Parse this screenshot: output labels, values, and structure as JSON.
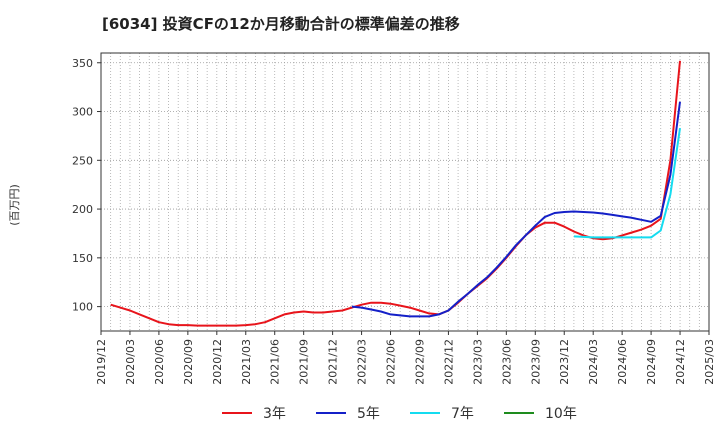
{
  "chart_data": {
    "type": "line",
    "title": "[6034]  投資CFの12か月移動合計の標準偏差の推移",
    "ylabel": "(百万円)",
    "xlabel": "",
    "ylim": [
      75,
      360
    ],
    "xlim": [
      "2019-12",
      "2025-03"
    ],
    "grid": true,
    "legend_position": "bottom",
    "y_ticks": [
      100,
      150,
      200,
      250,
      300,
      350
    ],
    "x_ticks": [
      "2019/12",
      "2020/03",
      "2020/06",
      "2020/09",
      "2020/12",
      "2021/03",
      "2021/06",
      "2021/09",
      "2021/12",
      "2022/03",
      "2022/06",
      "2022/09",
      "2022/12",
      "2023/03",
      "2023/06",
      "2023/09",
      "2023/12",
      "2024/03",
      "2024/06",
      "2024/09",
      "2024/12",
      "2025/03"
    ],
    "series": [
      {
        "name": "3年",
        "color": "#e8141b",
        "points": [
          [
            "2020-01",
            102
          ],
          [
            "2020-02",
            99
          ],
          [
            "2020-03",
            96
          ],
          [
            "2020-04",
            92
          ],
          [
            "2020-05",
            88
          ],
          [
            "2020-06",
            84
          ],
          [
            "2020-07",
            82
          ],
          [
            "2020-08",
            81
          ],
          [
            "2020-09",
            81
          ],
          [
            "2020-10",
            80.5
          ],
          [
            "2020-11",
            80.5
          ],
          [
            "2020-12",
            80.5
          ],
          [
            "2021-01",
            80.5
          ],
          [
            "2021-02",
            80.5
          ],
          [
            "2021-03",
            81
          ],
          [
            "2021-04",
            82
          ],
          [
            "2021-05",
            84
          ],
          [
            "2021-06",
            88
          ],
          [
            "2021-07",
            92
          ],
          [
            "2021-08",
            94
          ],
          [
            "2021-09",
            95
          ],
          [
            "2021-10",
            94
          ],
          [
            "2021-11",
            94
          ],
          [
            "2021-12",
            95
          ],
          [
            "2022-01",
            96
          ],
          [
            "2022-02",
            99
          ],
          [
            "2022-03",
            102
          ],
          [
            "2022-04",
            104
          ],
          [
            "2022-05",
            104
          ],
          [
            "2022-06",
            103
          ],
          [
            "2022-07",
            101
          ],
          [
            "2022-08",
            99
          ],
          [
            "2022-09",
            96
          ],
          [
            "2022-10",
            93
          ],
          [
            "2022-11",
            92
          ],
          [
            "2022-12",
            96
          ],
          [
            "2023-01",
            104
          ],
          [
            "2023-02",
            113
          ],
          [
            "2023-03",
            121
          ],
          [
            "2023-04",
            129
          ],
          [
            "2023-05",
            139
          ],
          [
            "2023-06",
            150
          ],
          [
            "2023-07",
            162
          ],
          [
            "2023-08",
            173
          ],
          [
            "2023-09",
            181
          ],
          [
            "2023-10",
            186
          ],
          [
            "2023-11",
            186
          ],
          [
            "2023-12",
            182
          ],
          [
            "2024-01",
            177
          ],
          [
            "2024-02",
            173
          ],
          [
            "2024-03",
            170
          ],
          [
            "2024-04",
            169
          ],
          [
            "2024-05",
            170
          ],
          [
            "2024-06",
            173
          ],
          [
            "2024-07",
            176
          ],
          [
            "2024-08",
            179
          ],
          [
            "2024-09",
            183
          ],
          [
            "2024-10",
            190
          ],
          [
            "2024-11",
            250
          ],
          [
            "2024-12",
            352
          ]
        ]
      },
      {
        "name": "5年",
        "color": "#1420c8",
        "points": [
          [
            "2022-02",
            100
          ],
          [
            "2022-03",
            99
          ],
          [
            "2022-04",
            97
          ],
          [
            "2022-05",
            95
          ],
          [
            "2022-06",
            92
          ],
          [
            "2022-07",
            91
          ],
          [
            "2022-08",
            90
          ],
          [
            "2022-09",
            90
          ],
          [
            "2022-10",
            90
          ],
          [
            "2022-11",
            92
          ],
          [
            "2022-12",
            96
          ],
          [
            "2023-01",
            105
          ],
          [
            "2023-02",
            113
          ],
          [
            "2023-03",
            122
          ],
          [
            "2023-04",
            130
          ],
          [
            "2023-05",
            140
          ],
          [
            "2023-06",
            151
          ],
          [
            "2023-07",
            163
          ],
          [
            "2023-08",
            173
          ],
          [
            "2023-09",
            183
          ],
          [
            "2023-10",
            192
          ],
          [
            "2023-11",
            196
          ],
          [
            "2023-12",
            197
          ],
          [
            "2024-01",
            197.5
          ],
          [
            "2024-02",
            197
          ],
          [
            "2024-03",
            196.5
          ],
          [
            "2024-04",
            195.5
          ],
          [
            "2024-05",
            194
          ],
          [
            "2024-06",
            192.5
          ],
          [
            "2024-07",
            191
          ],
          [
            "2024-08",
            189
          ],
          [
            "2024-09",
            187
          ],
          [
            "2024-10",
            193
          ],
          [
            "2024-11",
            235
          ],
          [
            "2024-12",
            310
          ]
        ]
      },
      {
        "name": "7年",
        "color": "#14dcf0",
        "points": [
          [
            "2024-01",
            172
          ],
          [
            "2024-02",
            171.5
          ],
          [
            "2024-03",
            171
          ],
          [
            "2024-04",
            171
          ],
          [
            "2024-05",
            171
          ],
          [
            "2024-06",
            171
          ],
          [
            "2024-07",
            171
          ],
          [
            "2024-08",
            171
          ],
          [
            "2024-09",
            171
          ],
          [
            "2024-10",
            178
          ],
          [
            "2024-11",
            215
          ],
          [
            "2024-12",
            283
          ]
        ]
      },
      {
        "name": "10年",
        "color": "#1e8c1e",
        "points": []
      }
    ]
  }
}
